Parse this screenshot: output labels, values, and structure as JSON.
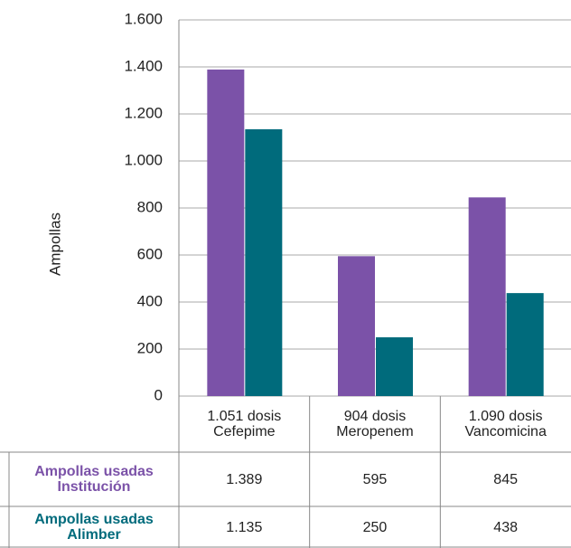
{
  "chart_data": {
    "type": "bar",
    "y_label": "Ampollas",
    "categories": [
      "1.051 dosis\nCefepime",
      "904 dosis\nMeropenem",
      "1.090 dosis\nVancomicina"
    ],
    "series": [
      {
        "name": "Ampollas usadas\nInstitución",
        "color": "#7b52a8",
        "values": [
          1389,
          595,
          845
        ],
        "value_labels": [
          "1.389",
          "595",
          "845"
        ]
      },
      {
        "name": "Ampollas usadas\nAlimber",
        "color": "#006b7c",
        "values": [
          1135,
          250,
          438
        ],
        "value_labels": [
          "1.135",
          "250",
          "438"
        ]
      }
    ],
    "ylim": [
      0,
      1600
    ],
    "yticks": [
      0,
      {
        "value": 200,
        "label": "200"
      },
      400,
      600,
      800,
      {
        "value": 1000,
        "label": "1.000"
      },
      {
        "value": 1200,
        "label": "1.200"
      },
      {
        "value": 1400,
        "label": "1.400"
      },
      {
        "value": 1600,
        "label": "1.600"
      }
    ],
    "grid": true
  }
}
